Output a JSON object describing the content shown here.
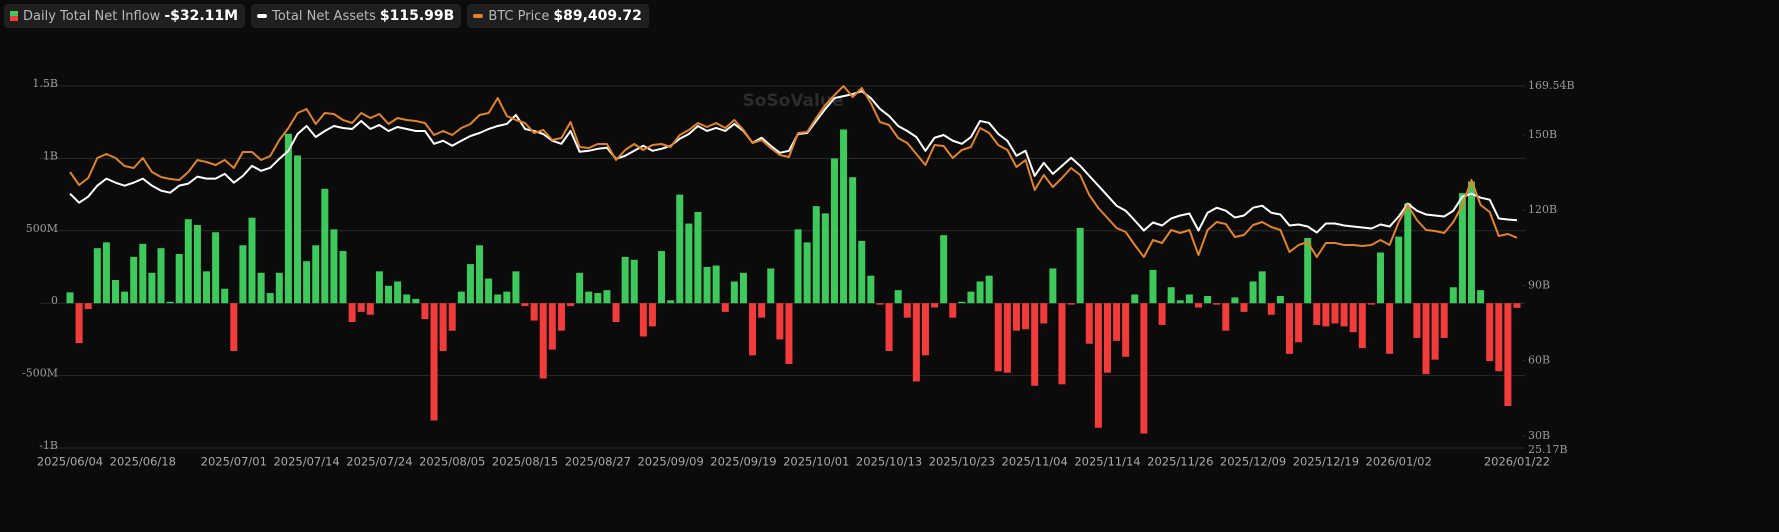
{
  "chart_data": {
    "type": "bar-line",
    "watermark": "SoSoValue",
    "header_values": [
      "-$32.11M",
      "$115.99B",
      "$89,409.72"
    ],
    "categories": [
      "2025/06/04",
      null,
      null,
      null,
      null,
      null,
      null,
      null,
      "2025/06/18",
      null,
      null,
      null,
      null,
      null,
      null,
      null,
      null,
      null,
      "2025/07/01",
      null,
      null,
      null,
      null,
      null,
      null,
      null,
      "2025/07/14",
      null,
      null,
      null,
      null,
      null,
      null,
      null,
      "2025/07/24",
      null,
      null,
      null,
      null,
      null,
      null,
      null,
      "2025/08/05",
      null,
      null,
      null,
      null,
      null,
      null,
      null,
      "2025/08/15",
      null,
      null,
      null,
      null,
      null,
      null,
      null,
      "2025/08/27",
      null,
      null,
      null,
      null,
      null,
      null,
      null,
      "2025/09/09",
      null,
      null,
      null,
      null,
      null,
      null,
      null,
      "2025/09/19",
      null,
      null,
      null,
      null,
      null,
      null,
      null,
      "2025/10/01",
      null,
      null,
      null,
      null,
      null,
      null,
      null,
      "2025/10/13",
      null,
      null,
      null,
      null,
      null,
      null,
      null,
      "2025/10/23",
      null,
      null,
      null,
      null,
      null,
      null,
      null,
      "2025/11/04",
      null,
      null,
      null,
      null,
      null,
      null,
      null,
      "2025/11/14",
      null,
      null,
      null,
      null,
      null,
      null,
      null,
      "2025/11/26",
      null,
      null,
      null,
      null,
      null,
      null,
      null,
      "2025/12/09",
      null,
      null,
      null,
      null,
      null,
      null,
      null,
      "2025/12/19",
      null,
      null,
      null,
      null,
      null,
      null,
      null,
      "2026/01/02",
      null,
      null,
      null,
      null,
      null,
      null,
      null,
      null,
      null,
      null,
      null,
      null,
      "2026/01/22"
    ],
    "ylim": [
      -1000000000,
      1500000000
    ],
    "yticks": [
      {
        "value": -1000000000,
        "label": "-1B"
      },
      {
        "value": -500000000,
        "label": "-500M"
      },
      0,
      {
        "value": 500000000,
        "label": "500M"
      },
      {
        "value": 1000000000,
        "label": "1B"
      },
      {
        "value": 1500000000,
        "label": "1.5B"
      }
    ],
    "y2lim": [
      25.17,
      169.54
    ],
    "y2ticks": [
      {
        "value": 25.17,
        "label": "25.17B"
      },
      {
        "value": 30,
        "label": "30B"
      },
      {
        "value": 60,
        "label": "60B"
      },
      {
        "value": 90,
        "label": "90B"
      },
      {
        "value": 120,
        "label": "120B"
      },
      {
        "value": 150,
        "label": "150B"
      },
      {
        "value": 169.54,
        "label": "169.54B"
      }
    ],
    "y3lim": [
      38758,
      126000
    ],
    "grid": true,
    "series": [
      {
        "name": "Daily Total Net Inflow",
        "type": "bar",
        "color": "#3ec95c",
        "negative_color": "#f23b3b",
        "values": [
          75000000,
          -276000000,
          -40000000,
          380000000,
          420000000,
          160000000,
          80000000,
          320000000,
          410000000,
          210000000,
          380000000,
          10000000,
          340000000,
          580000000,
          540000000,
          220000000,
          490000000,
          100000000,
          -330000000,
          400000000,
          590000000,
          210000000,
          70000000,
          210000000,
          1170000000,
          1020000000,
          290000000,
          400000000,
          790000000,
          510000000,
          360000000,
          -130000000,
          -60000000,
          -80000000,
          220000000,
          120000000,
          150000000,
          60000000,
          30000000,
          -110000000,
          -810000000,
          -330000000,
          -190000000,
          80000000,
          270000000,
          400000000,
          170000000,
          60000000,
          80000000,
          220000000,
          -20000000,
          -120000000,
          -520000000,
          -320000000,
          -190000000,
          -20000000,
          210000000,
          80000000,
          70000000,
          90000000,
          -130000000,
          320000000,
          300000000,
          -230000000,
          -160000000,
          360000000,
          20000000,
          750000000,
          550000000,
          630000000,
          250000000,
          260000000,
          -60000000,
          150000000,
          210000000,
          -360000000,
          -100000000,
          240000000,
          -250000000,
          -420000000,
          510000000,
          420000000,
          670000000,
          620000000,
          1000000000,
          1200000000,
          870000000,
          430000000,
          190000000,
          -10000000,
          -330000000,
          90000000,
          -100000000,
          -540000000,
          -360000000,
          -30000000,
          470000000,
          -100000000,
          10000000,
          80000000,
          150000000,
          190000000,
          -470000000,
          -480000000,
          -190000000,
          -180000000,
          -570000000,
          -140000000,
          240000000,
          -560000000,
          -10000000,
          520000000,
          -280000000,
          -860000000,
          -480000000,
          -260000000,
          -370000000,
          60000000,
          -900000000,
          230000000,
          -150000000,
          110000000,
          20000000,
          60000000,
          -30000000,
          50000000,
          -10000000,
          -190000000,
          40000000,
          -60000000,
          150000000,
          220000000,
          -80000000,
          50000000,
          -350000000,
          -270000000,
          450000000,
          -150000000,
          -160000000,
          -140000000,
          -160000000,
          -200000000,
          -310000000,
          -10000000,
          350000000,
          -350000000,
          460000000,
          690000000,
          -240000000,
          -490000000,
          -390000000,
          -240000000,
          110000000,
          760000000,
          840000000,
          90000000,
          -400000000,
          -470000000,
          -710000000,
          -32110000
        ]
      },
      {
        "name": "Total Net Assets",
        "type": "line",
        "axis": "y2",
        "color": "#ffffff",
        "values": [
          126.6,
          123.0,
          125.4,
          129.8,
          132.6,
          131.0,
          129.8,
          131.0,
          132.6,
          129.8,
          127.8,
          127.0,
          129.8,
          130.6,
          133.4,
          132.6,
          132.6,
          134.5,
          131.0,
          133.7,
          137.7,
          135.7,
          136.9,
          140.5,
          143.7,
          150.4,
          153.6,
          149.2,
          151.6,
          153.6,
          152.8,
          152.4,
          155.6,
          152.4,
          154.0,
          151.6,
          153.2,
          152.4,
          151.6,
          151.6,
          146.5,
          147.7,
          145.7,
          147.7,
          149.6,
          150.8,
          152.4,
          153.6,
          154.4,
          158.0,
          152.4,
          151.6,
          150.4,
          147.7,
          146.5,
          151.6,
          143.3,
          143.7,
          144.5,
          144.9,
          140.5,
          141.7,
          143.7,
          145.7,
          143.7,
          144.5,
          145.7,
          148.5,
          150.4,
          153.6,
          151.6,
          152.8,
          151.6,
          154.4,
          151.6,
          146.9,
          148.9,
          145.7,
          142.9,
          143.7,
          150.4,
          150.8,
          155.6,
          160.4,
          164.7,
          165.5,
          166.3,
          167.5,
          164.7,
          160.4,
          157.6,
          153.6,
          151.6,
          149.2,
          143.7,
          148.9,
          150.0,
          147.7,
          146.5,
          149.2,
          155.6,
          154.8,
          150.4,
          147.7,
          141.7,
          143.7,
          133.7,
          138.9,
          134.5,
          137.7,
          140.9,
          137.7,
          133.7,
          129.8,
          125.8,
          121.8,
          119.8,
          115.9,
          111.9,
          115.1,
          113.9,
          116.7,
          117.9,
          118.7,
          111.9,
          119.0,
          121.0,
          119.8,
          117.1,
          117.9,
          121.0,
          121.8,
          119.0,
          118.3,
          113.9,
          114.3,
          113.5,
          111.1,
          114.7,
          114.7,
          113.9,
          113.5,
          113.1,
          112.7,
          114.3,
          113.5,
          117.5,
          122.6,
          119.8,
          118.3,
          117.9,
          117.5,
          119.8,
          125.4,
          126.6,
          125.0,
          124.2,
          116.7,
          116.3,
          115.99
        ]
      },
      {
        "name": "BTC Price",
        "type": "line",
        "axis": "y3",
        "color": "#e0832a",
        "values": [
          105274,
          102141,
          103828,
          108648,
          109612,
          108648,
          106720,
          106238,
          108648,
          105274,
          104069,
          103587,
          103346,
          105274,
          108166,
          107684,
          106961,
          108166,
          106238,
          110094,
          110094,
          108166,
          109130,
          112986,
          115878,
          119493,
          120457,
          116842,
          119493,
          119252,
          117806,
          117083,
          119493,
          118288,
          119252,
          116842,
          118288,
          117806,
          117565,
          117083,
          114191,
          115155,
          114191,
          115878,
          116842,
          119011,
          119493,
          123108,
          118770,
          117806,
          117083,
          114673,
          115396,
          112986,
          113468,
          117324,
          111299,
          111058,
          112022,
          112022,
          108166,
          110576,
          112022,
          110576,
          111781,
          112022,
          111299,
          114191,
          115396,
          117083,
          116119,
          117083,
          115878,
          117806,
          115396,
          112263,
          112986,
          111058,
          109371,
          108889,
          114673,
          114914,
          118288,
          121421,
          123831,
          126000,
          123349,
          125518,
          121903,
          117324,
          116601,
          113468,
          112263,
          109612,
          106961,
          111781,
          111540,
          108648,
          110576,
          111299,
          115878,
          114673,
          111781,
          110576,
          106479,
          108166,
          100936,
          104551,
          101659,
          103828,
          106238,
          104551,
          99731,
          96598,
          94188,
          91778,
          90814,
          87681,
          84789,
          88886,
          88163,
          91296,
          90573,
          91296,
          85271,
          91296,
          93224,
          92742,
          89609,
          90091,
          92501,
          93224,
          92019,
          91296,
          85994,
          87681,
          88404,
          84789,
          88163,
          88163,
          87681,
          87681,
          87440,
          87681,
          88886,
          87681,
          93224,
          97321,
          93706,
          91296,
          91055,
          90573,
          93224,
          97321,
          103346,
          97321,
          95634,
          89850,
          90332,
          89409.72
        ]
      }
    ]
  }
}
